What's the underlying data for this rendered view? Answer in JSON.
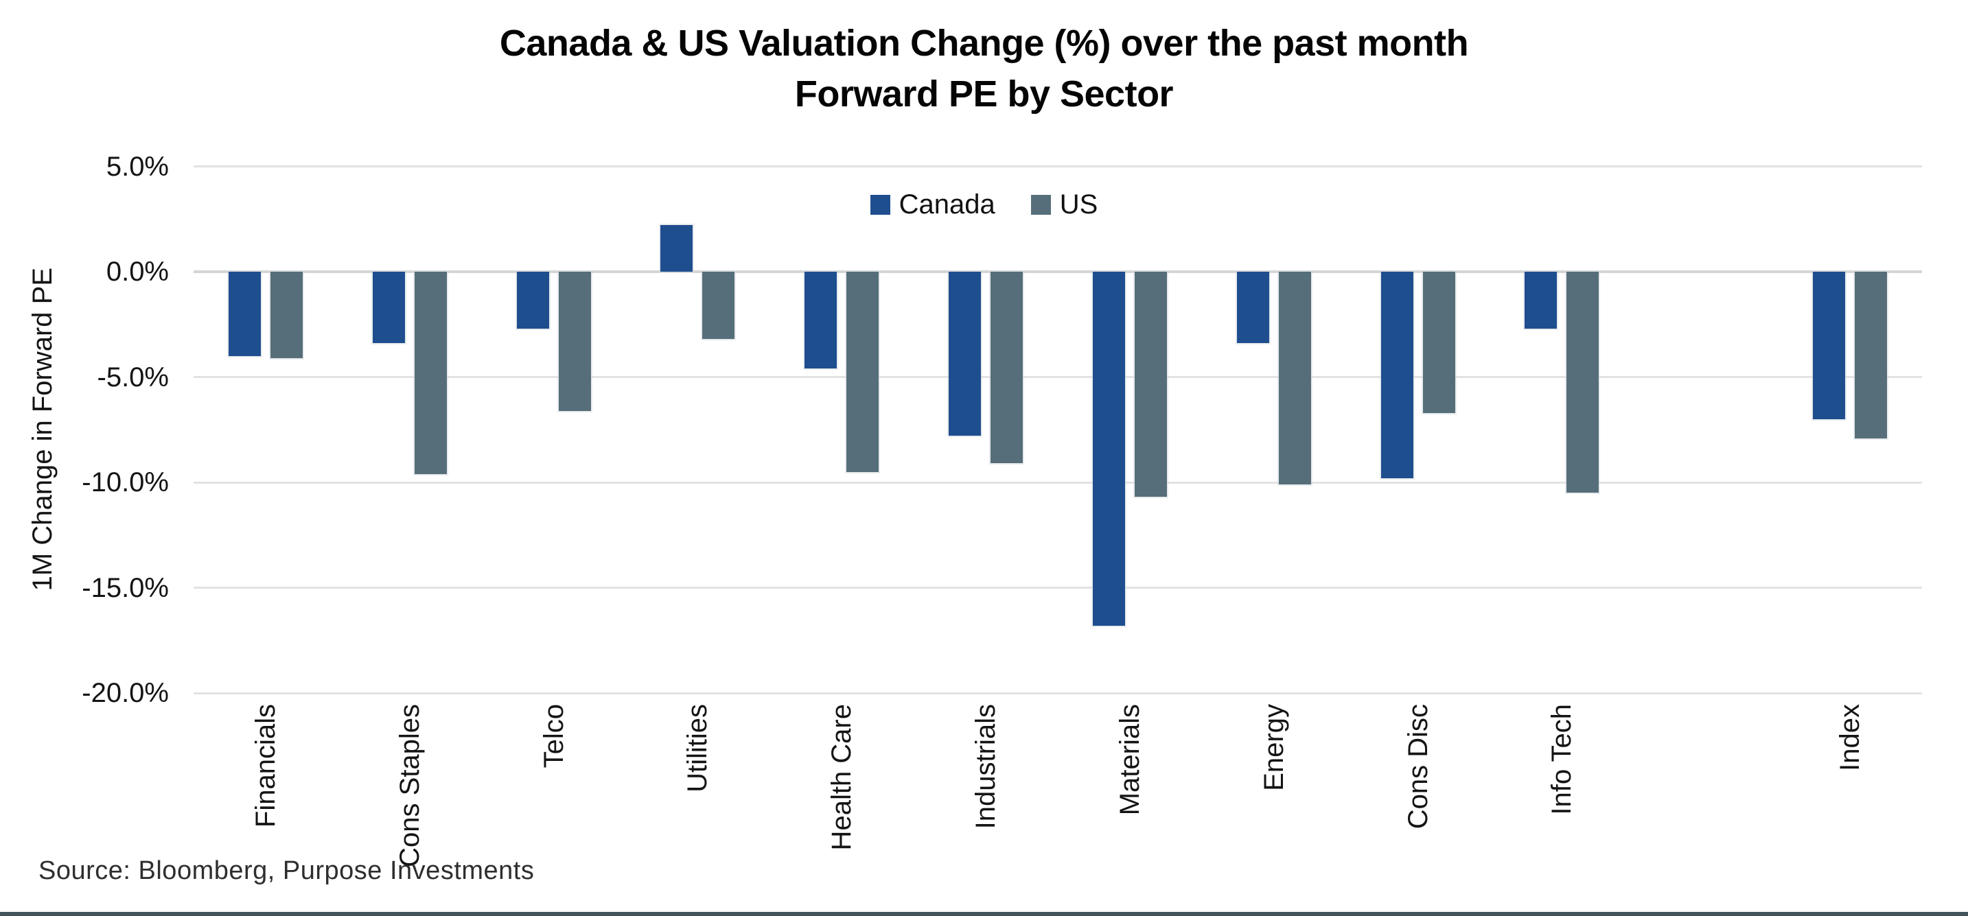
{
  "page": {
    "background": "#FFFFFF",
    "bottom_border_color": "#42535B"
  },
  "title": {
    "line1": "Canada & US Valuation Change (%) over the past month",
    "line2": "Forward PE by Sector"
  },
  "source": "Source: Bloomberg, Purpose Investments",
  "chart_data": {
    "type": "bar",
    "title": "Canada & US Valuation Change (%) over the past month Forward PE by Sector",
    "xlabel": "",
    "ylabel": "1M Change in Forward PE",
    "ylim": [
      -20,
      5
    ],
    "ytick_step": 5,
    "ytick_labels": [
      "5.0%",
      "0.0%",
      "-5.0%",
      "-10.0%",
      "-15.0%",
      "-20.0%"
    ],
    "grid": true,
    "gridline_color": "#E2E2E2",
    "zero_line_color": "#D5D5D5",
    "legend_position": "top-center",
    "categories": [
      "Financials",
      "Cons Staples",
      "Telco",
      "Utilities",
      "Health Care",
      "Industrials",
      "Materials",
      "Energy",
      "Cons Disc",
      "Info Tech",
      null,
      "Index"
    ],
    "series": [
      {
        "name": "Canada",
        "color": "#1F4E8F",
        "values": [
          -4.0,
          -3.4,
          -2.7,
          2.2,
          -4.6,
          -7.8,
          -16.8,
          -3.4,
          -9.8,
          -2.7,
          null,
          -7.0
        ]
      },
      {
        "name": "US",
        "color": "#566E7A",
        "values": [
          -4.1,
          -9.6,
          -6.6,
          -3.2,
          -9.5,
          -9.1,
          -10.7,
          -10.1,
          -6.7,
          -10.5,
          null,
          -7.9
        ]
      }
    ]
  }
}
